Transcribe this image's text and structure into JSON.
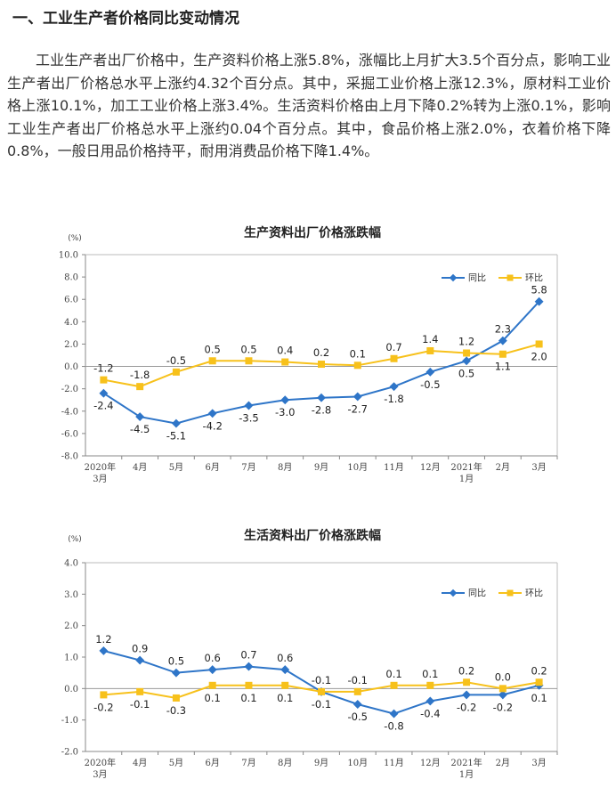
{
  "section": {
    "heading": "一、工业生产者价格同比变动情况",
    "paragraph": "工业生产者出厂价格中，生产资料价格上涨5.8%，涨幅比上月扩大3.5个百分点，影响工业生产者出厂价格总水平上涨约4.32个百分点。其中，采掘工业价格上涨12.3%，原材料工业价格上涨10.1%，加工工业价格上涨3.4%。生活资料价格由上月下降0.2%转为上涨0.1%，影响工业生产者出厂价格总水平上涨约0.04个百分点。其中，食品价格上涨2.0%，衣着价格下降0.8%，一般日用品价格持平，耐用消费品价格下降1.4%。"
  },
  "chart_data": [
    {
      "type": "line",
      "title": "生产资料出厂价格涨跌幅",
      "unit": "(%)",
      "categories": [
        "2020年\n3月",
        "4月",
        "5月",
        "6月",
        "7月",
        "8月",
        "9月",
        "10月",
        "11月",
        "12月",
        "2021年\n1月",
        "2月",
        "3月"
      ],
      "ylim": [
        -8.0,
        10.0
      ],
      "yticks": [
        "10.0",
        "8.0",
        "6.0",
        "4.0",
        "2.0",
        "0.0",
        "-2.0",
        "-4.0",
        "-6.0",
        "-8.0"
      ],
      "legend_position": "top-right",
      "series": [
        {
          "name": "同比",
          "color": "#2e75c8",
          "values": [
            -2.4,
            -4.5,
            -5.1,
            -4.2,
            -3.5,
            -3.0,
            -2.8,
            -2.7,
            -1.8,
            -0.5,
            0.5,
            2.3,
            5.8
          ],
          "labels": [
            "-2.4",
            "-4.5",
            "-5.1",
            "-4.2",
            "-3.5",
            "-3.0",
            "-2.8",
            "-2.7",
            "-1.8",
            "-0.5",
            "0.5",
            "2.3",
            "5.8"
          ]
        },
        {
          "name": "环比",
          "color": "#f7c11b",
          "values": [
            -1.2,
            -1.8,
            -0.5,
            0.5,
            0.5,
            0.4,
            0.2,
            0.1,
            0.7,
            1.4,
            1.2,
            1.1,
            2.0
          ],
          "labels": [
            "-1.2",
            "-1.8",
            "-0.5",
            "0.5",
            "0.5",
            "0.4",
            "0.2",
            "0.1",
            "0.7",
            "1.4",
            "1.2",
            "1.1",
            "2.0"
          ]
        }
      ]
    },
    {
      "type": "line",
      "title": "生活资料出厂价格涨跌幅",
      "unit": "(%)",
      "categories": [
        "2020年\n3月",
        "4月",
        "5月",
        "6月",
        "7月",
        "8月",
        "9月",
        "10月",
        "11月",
        "12月",
        "2021年\n1月",
        "2月",
        "3月"
      ],
      "ylim": [
        -2.0,
        4.0
      ],
      "yticks": [
        "4.0",
        "3.0",
        "2.0",
        "1.0",
        "0.0",
        "-1.0",
        "-2.0"
      ],
      "legend_position": "top-right",
      "series": [
        {
          "name": "同比",
          "color": "#2e75c8",
          "values": [
            1.2,
            0.9,
            0.5,
            0.6,
            0.7,
            0.6,
            -0.1,
            -0.5,
            -0.8,
            -0.4,
            -0.2,
            -0.2,
            0.1
          ],
          "labels": [
            "1.2",
            "0.9",
            "0.5",
            "0.6",
            "0.7",
            "0.6",
            "-0.1",
            "-0.5",
            "-0.8",
            "-0.4",
            "-0.2",
            "-0.2",
            "0.1"
          ]
        },
        {
          "name": "环比",
          "color": "#f7c11b",
          "values": [
            -0.2,
            -0.1,
            -0.3,
            0.1,
            0.1,
            0.1,
            -0.1,
            -0.1,
            0.1,
            0.1,
            0.2,
            0.0,
            0.2
          ],
          "labels": [
            "-0.2",
            "-0.1",
            "-0.3",
            "0.1",
            "0.1",
            "0.1",
            "-0.1",
            "-0.1",
            "0.1",
            "0.1",
            "0.2",
            "0.0",
            "0.2"
          ]
        }
      ]
    }
  ]
}
